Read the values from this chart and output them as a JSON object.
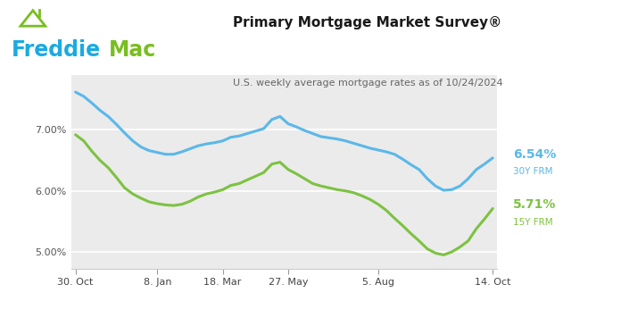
{
  "title": "Primary Mortgage Market Survey®",
  "subtitle": "U.S. weekly average mortgage rates as of 10/24/2024",
  "freddie_blue": "#1AABE0",
  "freddie_green": "#78BE20",
  "chart_bg": "#ebebeb",
  "line_30y_color": "#5BB8E8",
  "line_15y_color": "#7DC242",
  "label_30y": "6.54%",
  "label_30y_sub": "30Y FRM",
  "label_15y": "5.71%",
  "label_15y_sub": "15Y FRM",
  "yticks": [
    5.0,
    6.0,
    7.0
  ],
  "ylim": [
    4.72,
    7.9
  ],
  "xtick_labels": [
    "30. Oct",
    "8. Jan",
    "18. Mar",
    "27. May",
    "5. Aug",
    "14. Oct"
  ],
  "xtick_positions": [
    0,
    10,
    18,
    26,
    37,
    51
  ],
  "x_data": [
    0,
    1,
    2,
    3,
    4,
    5,
    6,
    7,
    8,
    9,
    10,
    11,
    12,
    13,
    14,
    15,
    16,
    17,
    18,
    19,
    20,
    21,
    22,
    23,
    24,
    25,
    26,
    27,
    28,
    29,
    30,
    31,
    32,
    33,
    34,
    35,
    36,
    37,
    38,
    39,
    40,
    41,
    42,
    43,
    44,
    45,
    46,
    47,
    48,
    49,
    50,
    51
  ],
  "y_30y": [
    7.62,
    7.55,
    7.44,
    7.32,
    7.22,
    7.09,
    6.95,
    6.82,
    6.72,
    6.66,
    6.63,
    6.6,
    6.6,
    6.64,
    6.69,
    6.74,
    6.77,
    6.79,
    6.82,
    6.88,
    6.9,
    6.94,
    6.98,
    7.02,
    7.17,
    7.22,
    7.1,
    7.05,
    6.99,
    6.94,
    6.89,
    6.87,
    6.85,
    6.82,
    6.78,
    6.74,
    6.7,
    6.67,
    6.64,
    6.6,
    6.52,
    6.43,
    6.35,
    6.2,
    6.08,
    6.01,
    6.02,
    6.08,
    6.2,
    6.35,
    6.44,
    6.54
  ],
  "y_15y": [
    6.92,
    6.82,
    6.65,
    6.5,
    6.38,
    6.22,
    6.05,
    5.95,
    5.88,
    5.82,
    5.79,
    5.77,
    5.76,
    5.78,
    5.83,
    5.9,
    5.95,
    5.98,
    6.02,
    6.09,
    6.12,
    6.18,
    6.24,
    6.3,
    6.44,
    6.47,
    6.35,
    6.28,
    6.2,
    6.12,
    6.08,
    6.05,
    6.02,
    6.0,
    5.97,
    5.92,
    5.86,
    5.78,
    5.68,
    5.55,
    5.43,
    5.3,
    5.18,
    5.05,
    4.98,
    4.95,
    5.0,
    5.08,
    5.18,
    5.38,
    5.54,
    5.71
  ]
}
